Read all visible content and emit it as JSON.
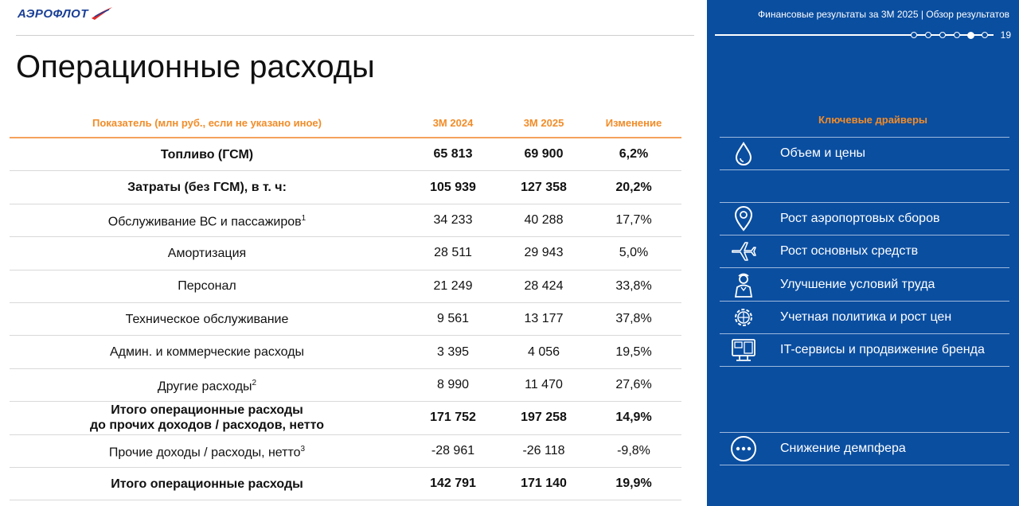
{
  "brand": {
    "logo_text": "АЭРОФЛОТ"
  },
  "page": {
    "title": "Операционные расходы"
  },
  "table": {
    "headers": {
      "label": "Показатель (млн руб., если не указано иное)",
      "a": "3М 2024",
      "b": "3М 2025",
      "c": "Изменение"
    },
    "rows": [
      {
        "label": "Топливо (ГСМ)",
        "sup": "",
        "a": "65 813",
        "b": "69 900",
        "c": "6,2%"
      },
      {
        "label": "Затраты (без ГСМ), в т. ч:",
        "sup": "",
        "a": "105 939",
        "b": "127 358",
        "c": "20,2%"
      },
      {
        "label": "Обслуживание ВС и пассажиров",
        "sup": "1",
        "a": "34 233",
        "b": "40 288",
        "c": "17,7%"
      },
      {
        "label": "Амортизация",
        "sup": "",
        "a": "28 511",
        "b": "29 943",
        "c": "5,0%"
      },
      {
        "label": "Персонал",
        "sup": "",
        "a": "21 249",
        "b": "28 424",
        "c": "33,8%"
      },
      {
        "label": "Техническое обслуживание",
        "sup": "",
        "a": "9 561",
        "b": "13 177",
        "c": "37,8%"
      },
      {
        "label": "Админ. и коммерческие расходы",
        "sup": "",
        "a": "3 395",
        "b": "4 056",
        "c": "19,5%"
      },
      {
        "label": "Другие расходы",
        "sup": "2",
        "a": "8 990",
        "b": "11 470",
        "c": "27,6%"
      },
      {
        "label": "Итого операционные расходы",
        "label2": "до прочих доходов / расходов, нетто",
        "sup": "",
        "a": "171 752",
        "b": "197 258",
        "c": "14,9%"
      },
      {
        "label": "Прочие доходы / расходы, нетто",
        "sup": "3",
        "a": "-28 961",
        "b": "-26 118",
        "c": "-9,8%"
      },
      {
        "label": "Итого операционные расходы",
        "sup": "",
        "a": "142 791",
        "b": "171 140",
        "c": "19,9%"
      }
    ]
  },
  "panel": {
    "header": "Финансовые результаты за 3М 2025 | Обзор результатов",
    "page_number": "19",
    "drivers_title": "Ключевые драйверы",
    "drivers": [
      {
        "icon": "fuel-drop-icon",
        "label": "Объем и цены"
      },
      {
        "icon": "location-pin-icon",
        "label": "Рост аэропортовых сборов"
      },
      {
        "icon": "airplane-icon",
        "label": "Рост основных средств"
      },
      {
        "icon": "flight-attendant-icon",
        "label": "Улучшение условий труда"
      },
      {
        "icon": "gear-icon",
        "label": "Учетная политика и рост цен"
      },
      {
        "icon": "it-devices-icon",
        "label": "IT-сервисы и продвижение бренда"
      },
      {
        "icon": "more-dots-icon",
        "label": "Снижение демпфера"
      }
    ]
  }
}
